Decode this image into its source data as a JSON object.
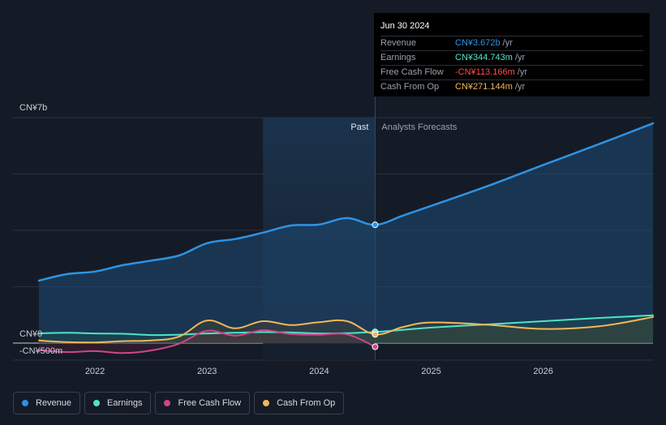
{
  "tooltip": {
    "date": "Jun 30 2024",
    "rows": [
      {
        "label": "Revenue",
        "value": "CN¥3.672b",
        "unit": "/yr",
        "color": "#2d93e4"
      },
      {
        "label": "Earnings",
        "value": "CN¥344.743m",
        "unit": "/yr",
        "color": "#4fe3c8"
      },
      {
        "label": "Free Cash Flow",
        "value": "-CN¥113.166m",
        "unit": "/yr",
        "color": "#ff4d4d"
      },
      {
        "label": "Cash From Op",
        "value": "CN¥271.144m",
        "unit": "/yr",
        "color": "#f2b65a"
      }
    ]
  },
  "legend": [
    {
      "label": "Revenue",
      "color": "#2d93e4"
    },
    {
      "label": "Earnings",
      "color": "#4fe3c8"
    },
    {
      "label": "Free Cash Flow",
      "color": "#d0458c"
    },
    {
      "label": "Cash From Op",
      "color": "#f2b65a"
    }
  ],
  "chart_data": {
    "type": "line",
    "y_unit_labels": {
      "top": "CN¥7b",
      "zero": "CN¥0",
      "bottom": "-CN¥500m"
    },
    "ylim": [
      -500,
      7000
    ],
    "xlim": [
      2021.48,
      2026.98
    ],
    "x_ticks": [
      2022,
      2023,
      2024,
      2025,
      2026
    ],
    "past_label": "Past",
    "forecast_label": "Analysts Forecasts",
    "past_end": 2024.5,
    "highlight_start": 2023.5,
    "grid": true,
    "legend_position": "bottom-left",
    "series": [
      {
        "name": "Revenue",
        "color": "#2d93e4",
        "points": [
          [
            2021.5,
            1940
          ],
          [
            2021.75,
            2140
          ],
          [
            2022.0,
            2220
          ],
          [
            2022.25,
            2420
          ],
          [
            2022.5,
            2560
          ],
          [
            2022.75,
            2720
          ],
          [
            2023.0,
            3100
          ],
          [
            2023.25,
            3230
          ],
          [
            2023.5,
            3430
          ],
          [
            2023.75,
            3650
          ],
          [
            2024.0,
            3680
          ],
          [
            2024.25,
            3880
          ],
          [
            2024.5,
            3672
          ]
        ],
        "forecast": [
          [
            2024.5,
            3672
          ],
          [
            2024.75,
            3960
          ],
          [
            2025.0,
            4260
          ],
          [
            2025.5,
            4870
          ],
          [
            2026.0,
            5530
          ],
          [
            2026.5,
            6180
          ],
          [
            2026.98,
            6820
          ]
        ]
      },
      {
        "name": "Earnings",
        "color": "#4fe3c8",
        "points": [
          [
            2021.5,
            300
          ],
          [
            2021.75,
            320
          ],
          [
            2022.0,
            300
          ],
          [
            2022.25,
            290
          ],
          [
            2022.5,
            250
          ],
          [
            2022.75,
            260
          ],
          [
            2023.0,
            300
          ],
          [
            2023.25,
            320
          ],
          [
            2023.5,
            340
          ],
          [
            2023.75,
            330
          ],
          [
            2024.0,
            300
          ],
          [
            2024.25,
            310
          ],
          [
            2024.5,
            345
          ]
        ],
        "forecast": [
          [
            2024.5,
            345
          ],
          [
            2025.0,
            480
          ],
          [
            2025.5,
            580
          ],
          [
            2026.0,
            680
          ],
          [
            2026.5,
            780
          ],
          [
            2026.98,
            860
          ]
        ]
      },
      {
        "name": "Free Cash Flow",
        "color": "#d0458c",
        "points": [
          [
            2021.5,
            -220
          ],
          [
            2021.75,
            -280
          ],
          [
            2022.0,
            -250
          ],
          [
            2022.25,
            -310
          ],
          [
            2022.5,
            -230
          ],
          [
            2022.75,
            -20
          ],
          [
            2023.0,
            380
          ],
          [
            2023.25,
            230
          ],
          [
            2023.5,
            400
          ],
          [
            2023.75,
            280
          ],
          [
            2024.0,
            260
          ],
          [
            2024.25,
            270
          ],
          [
            2024.5,
            -113
          ]
        ]
      },
      {
        "name": "Cash From Op",
        "color": "#f2b65a",
        "points": [
          [
            2021.5,
            80
          ],
          [
            2021.75,
            30
          ],
          [
            2022.0,
            20
          ],
          [
            2022.25,
            60
          ],
          [
            2022.5,
            80
          ],
          [
            2022.75,
            200
          ],
          [
            2023.0,
            700
          ],
          [
            2023.25,
            460
          ],
          [
            2023.5,
            680
          ],
          [
            2023.75,
            560
          ],
          [
            2024.0,
            650
          ],
          [
            2024.25,
            680
          ],
          [
            2024.5,
            271
          ]
        ],
        "forecast": [
          [
            2024.5,
            271
          ],
          [
            2024.75,
            500
          ],
          [
            2025.0,
            640
          ],
          [
            2025.5,
            570
          ],
          [
            2026.0,
            440
          ],
          [
            2026.5,
            520
          ],
          [
            2026.98,
            810
          ]
        ]
      }
    ]
  }
}
